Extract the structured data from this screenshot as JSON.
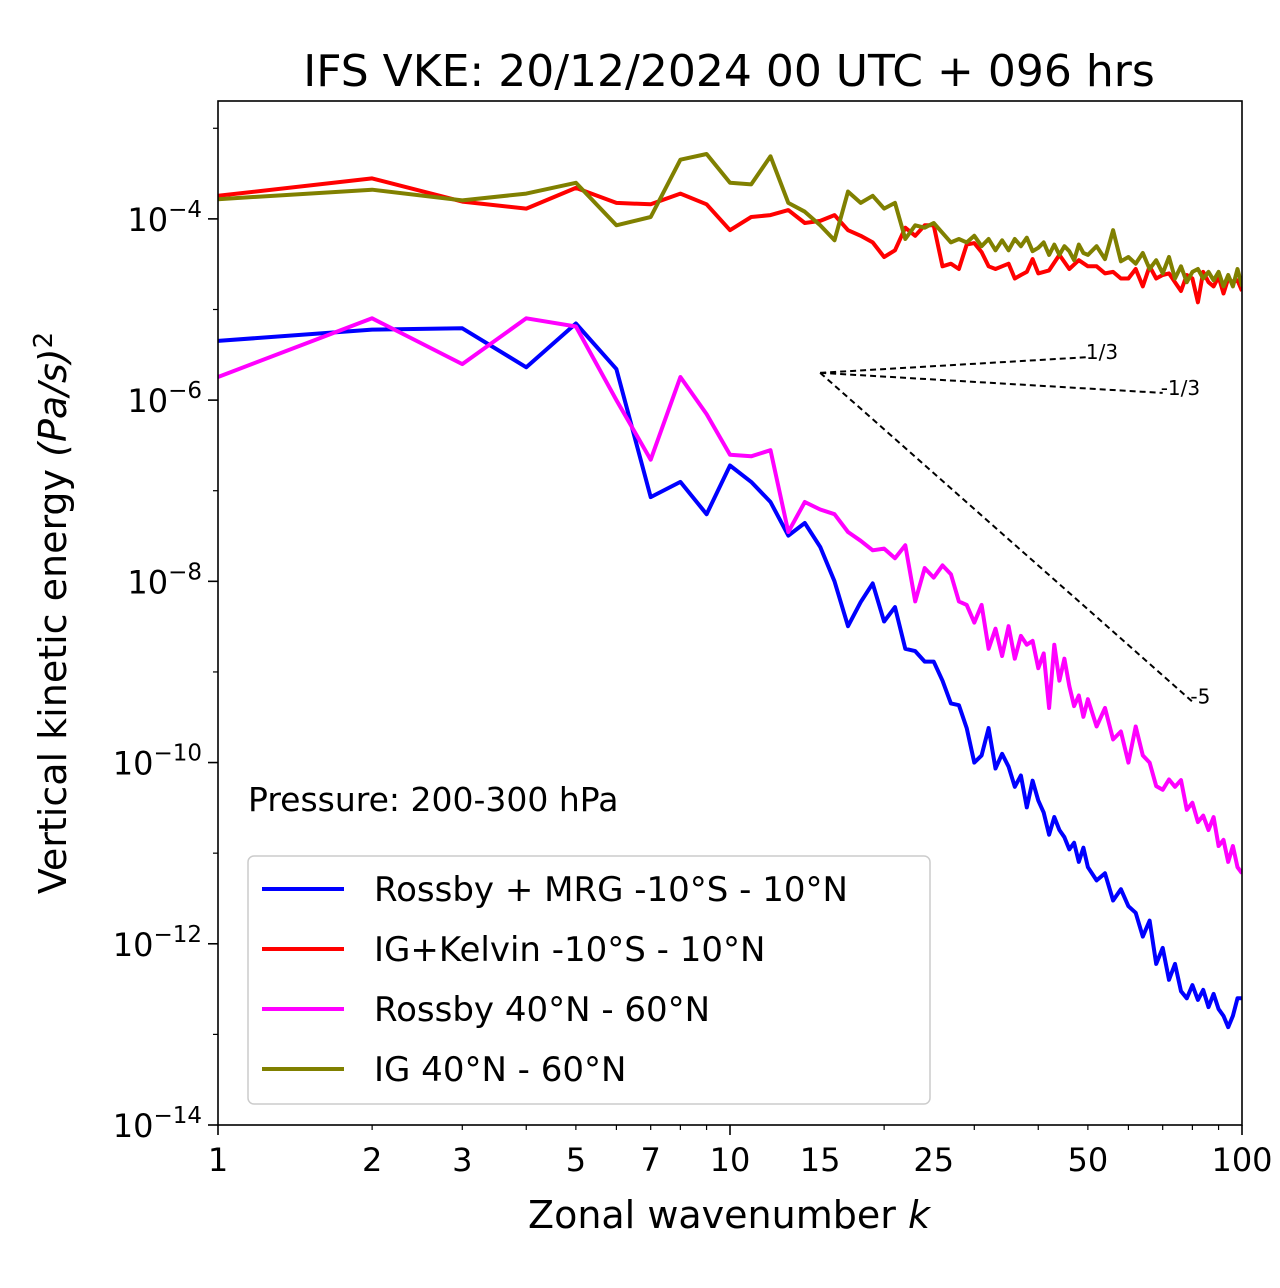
{
  "chart_data": {
    "type": "line",
    "title": "IFS VKE: 20/12/2024 00 UTC + 096 hrs",
    "xlabel": "Zonal wavenumber",
    "xlabel_var": "k",
    "ylabel": "Vertical kinetic energy",
    "ylabel_unit": "(Pa/s)",
    "ylabel_unit_exp": "2",
    "xscale": "log",
    "yscale": "log",
    "xlim": [
      1,
      100
    ],
    "ylim": [
      1e-14,
      0.002
    ],
    "xticks": [
      1,
      2,
      3,
      5,
      7,
      10,
      15,
      25,
      50,
      100
    ],
    "yticks": [
      {
        "exp": -4,
        "label_base": "10",
        "label_exp": "−4"
      },
      {
        "exp": -6,
        "label_base": "10",
        "label_exp": "−6"
      },
      {
        "exp": -8,
        "label_base": "10",
        "label_exp": "−8"
      },
      {
        "exp": -10,
        "label_base": "10",
        "label_exp": "−10"
      },
      {
        "exp": -12,
        "label_base": "10",
        "label_exp": "−12"
      },
      {
        "exp": -14,
        "label_base": "10",
        "label_exp": "−14"
      }
    ],
    "annotation": "Pressure: 200-300 hPa",
    "legend_position": "lower-left",
    "reference_slopes": [
      {
        "label": "1/3",
        "slope": 0.3333,
        "x": [
          15,
          50
        ],
        "y": [
          2e-06,
          2.98e-06
        ]
      },
      {
        "label": "-1/3",
        "slope": -0.3333,
        "x": [
          15,
          70
        ],
        "y": [
          2e-06,
          1.2e-06
        ]
      },
      {
        "label": "-5",
        "slope": -5,
        "x": [
          15,
          80
        ],
        "y": [
          2e-06,
          4.7e-10
        ]
      }
    ],
    "series": [
      {
        "name": "Rossby + MRG -10°S - 10°N",
        "color": "#0000ff",
        "x": [
          1,
          2,
          3,
          4,
          5,
          6,
          7,
          8,
          9,
          10,
          11,
          12,
          13,
          14,
          15,
          16,
          17,
          18,
          19,
          20,
          21,
          22,
          23,
          24,
          25,
          26,
          27,
          28,
          29,
          30,
          31,
          32,
          33,
          34,
          35,
          36,
          37,
          38,
          39,
          40,
          41,
          42,
          43,
          44,
          45,
          46,
          47,
          48,
          49,
          50,
          52,
          54,
          56,
          58,
          60,
          62,
          64,
          66,
          68,
          70,
          72,
          74,
          76,
          78,
          80,
          82,
          84,
          86,
          88,
          90,
          92,
          94,
          96,
          98,
          100
        ],
        "y": [
          4.5e-06,
          6e-06,
          6.2e-06,
          2.3e-06,
          7e-06,
          2.2e-06,
          8.5e-08,
          1.25e-07,
          5.5e-08,
          1.9e-07,
          1.25e-07,
          7.5e-08,
          3.2e-08,
          4.4e-08,
          2.4e-08,
          1e-08,
          3.2e-09,
          5.9e-09,
          9.5e-09,
          3.6e-09,
          5.2e-09,
          1.8e-09,
          1.7e-09,
          1.3e-09,
          1.3e-09,
          8e-10,
          4.5e-10,
          4.3e-10,
          2.4e-10,
          1e-10,
          1.2e-10,
          2.4e-10,
          8.6e-11,
          1.25e-10,
          9e-11,
          5.4e-11,
          7.2e-11,
          3.2e-11,
          6.3e-11,
          3.8e-11,
          2.8e-11,
          1.6e-11,
          2.5e-11,
          1.8e-11,
          1.5e-11,
          1.1e-11,
          1.3e-11,
          8e-12,
          1.15e-11,
          7e-12,
          5e-12,
          6e-12,
          3e-12,
          4e-12,
          2.6e-12,
          2.2e-12,
          1.2e-12,
          1.8e-12,
          6e-13,
          9e-13,
          4e-13,
          6e-13,
          3e-13,
          2.5e-13,
          3.5e-13,
          2.4e-13,
          3.1e-13,
          2e-13,
          2.8e-13,
          1.9e-13,
          1.6e-13,
          1.2e-13,
          1.6e-13,
          2.5e-13,
          2.5e-13
        ]
      },
      {
        "name": "IG+Kelvin -10°S - 10°N",
        "color": "#ff0000",
        "x": [
          1,
          2,
          3,
          4,
          5,
          6,
          7,
          8,
          9,
          10,
          11,
          12,
          13,
          14,
          15,
          16,
          17,
          18,
          19,
          20,
          21,
          22,
          23,
          24,
          25,
          26,
          27,
          28,
          29,
          30,
          31,
          32,
          33,
          34,
          35,
          36,
          37,
          38,
          39,
          40,
          42,
          44,
          46,
          48,
          50,
          52,
          54,
          56,
          58,
          60,
          62,
          64,
          66,
          68,
          70,
          72,
          74,
          76,
          78,
          80,
          82,
          84,
          86,
          88,
          90,
          92,
          94,
          96,
          98,
          100
        ],
        "y": [
          0.00018,
          0.00028,
          0.000155,
          0.00013,
          0.00022,
          0.00015,
          0.000145,
          0.00019,
          0.000145,
          7.5e-05,
          0.000105,
          0.00011,
          0.000125,
          9e-05,
          9.5e-05,
          0.00011,
          7.5e-05,
          6.5e-05,
          5.5e-05,
          3.8e-05,
          4.5e-05,
          8e-05,
          6.5e-05,
          8.5e-05,
          8.5e-05,
          3e-05,
          3.2e-05,
          2.8e-05,
          5.2e-05,
          5.4e-05,
          4.3e-05,
          3e-05,
          2.8e-05,
          3e-05,
          3.2e-05,
          2.2e-05,
          2.4e-05,
          2.6e-05,
          3.6e-05,
          2.5e-05,
          2.7e-05,
          4e-05,
          2.8e-05,
          3.5e-05,
          3e-05,
          3e-05,
          2.5e-05,
          2.6e-05,
          2.2e-05,
          2.2e-05,
          2.8e-05,
          1.8e-05,
          3e-05,
          2.2e-05,
          2.4e-05,
          2.5e-05,
          2e-05,
          1.6e-05,
          2.4e-05,
          2.2e-05,
          1.2e-05,
          2.6e-05,
          2e-05,
          1.8e-05,
          2.3e-05,
          1.5e-05,
          2.2e-05,
          2e-05,
          2.1e-05,
          1.6e-05
        ]
      },
      {
        "name": "Rossby 40°N - 60°N",
        "color": "#ff00ff",
        "x": [
          1,
          2,
          3,
          4,
          5,
          6,
          7,
          8,
          9,
          10,
          11,
          12,
          13,
          14,
          15,
          16,
          17,
          18,
          19,
          20,
          21,
          22,
          23,
          24,
          25,
          26,
          27,
          28,
          29,
          30,
          31,
          32,
          33,
          34,
          35,
          36,
          37,
          38,
          39,
          40,
          41,
          42,
          43,
          44,
          45,
          46,
          47,
          48,
          49,
          50,
          52,
          54,
          56,
          58,
          60,
          62,
          64,
          66,
          68,
          70,
          72,
          74,
          76,
          78,
          80,
          82,
          84,
          86,
          88,
          90,
          92,
          94,
          96,
          98,
          100
        ],
        "y": [
          1.8e-06,
          8e-06,
          2.5e-06,
          8e-06,
          6.5e-06,
          1e-06,
          2.2e-07,
          1.8e-06,
          7e-07,
          2.5e-07,
          2.4e-07,
          2.8e-07,
          3.5e-08,
          7.5e-08,
          6.2e-08,
          5.5e-08,
          3.5e-08,
          2.8e-08,
          2.2e-08,
          2.3e-08,
          1.8e-08,
          2.5e-08,
          6e-09,
          1.4e-08,
          1.1e-08,
          1.5e-08,
          1.2e-08,
          6e-09,
          5.5e-09,
          3.5e-09,
          5.5e-09,
          1.8e-09,
          3e-09,
          1.5e-09,
          3.2e-09,
          1.4e-09,
          2.5e-09,
          2e-09,
          2.2e-09,
          1.1e-09,
          1.6e-09,
          4e-10,
          2e-09,
          8e-10,
          1.4e-09,
          7e-10,
          4.2e-10,
          5.5e-10,
          3.2e-10,
          5e-10,
          2.5e-10,
          4e-10,
          1.8e-10,
          2.2e-10,
          1e-10,
          2.5e-10,
          1.2e-10,
          1e-10,
          5.5e-11,
          5e-11,
          6.5e-11,
          5.4e-11,
          6.4e-11,
          3e-11,
          3.6e-11,
          2.2e-11,
          2.6e-11,
          1.8e-11,
          2.5e-11,
          1.2e-11,
          1.4e-11,
          8e-12,
          1.2e-11,
          7e-12,
          6e-12
        ]
      },
      {
        "name": "IG 40°N - 60°N",
        "color": "#808000",
        "x": [
          1,
          2,
          3,
          4,
          5,
          6,
          7,
          8,
          9,
          10,
          11,
          12,
          13,
          14,
          15,
          16,
          17,
          18,
          19,
          20,
          21,
          22,
          23,
          24,
          25,
          26,
          27,
          28,
          29,
          30,
          31,
          32,
          33,
          34,
          35,
          36,
          37,
          38,
          39,
          40,
          41,
          42,
          43,
          44,
          45,
          46,
          47,
          48,
          49,
          50,
          52,
          54,
          56,
          58,
          60,
          62,
          64,
          66,
          68,
          70,
          72,
          74,
          76,
          78,
          80,
          82,
          84,
          86,
          88,
          90,
          92,
          94,
          96,
          98,
          100
        ],
        "y": [
          0.000165,
          0.00021,
          0.00016,
          0.00019,
          0.00025,
          8.5e-05,
          0.000105,
          0.00045,
          0.00052,
          0.00025,
          0.00024,
          0.00049,
          0.00015,
          0.00012,
          8.5e-05,
          5.8e-05,
          0.0002,
          0.00015,
          0.00018,
          0.00013,
          0.00015,
          6e-05,
          8.5e-05,
          8e-05,
          9e-05,
          7e-05,
          5.5e-05,
          6e-05,
          5.5e-05,
          6.5e-05,
          5e-05,
          6e-05,
          4.5e-05,
          5.8e-05,
          4.5e-05,
          6e-05,
          5e-05,
          6.2e-05,
          4.4e-05,
          4.8e-05,
          5.5e-05,
          4e-05,
          5.2e-05,
          4e-05,
          5e-05,
          4.4e-05,
          3.5e-05,
          5.2e-05,
          4.2e-05,
          4e-05,
          5e-05,
          3.6e-05,
          7.5e-05,
          3.4e-05,
          3.8e-05,
          3.2e-05,
          4.2e-05,
          2.8e-05,
          3.5e-05,
          2.5e-05,
          3.8e-05,
          2.2e-05,
          3e-05,
          2e-05,
          2.6e-05,
          2.8e-05,
          2.2e-05,
          2.6e-05,
          2.1e-05,
          2.6e-05,
          1.8e-05,
          2.4e-05,
          1.8e-05,
          2.8e-05,
          1.8e-05
        ]
      }
    ]
  }
}
